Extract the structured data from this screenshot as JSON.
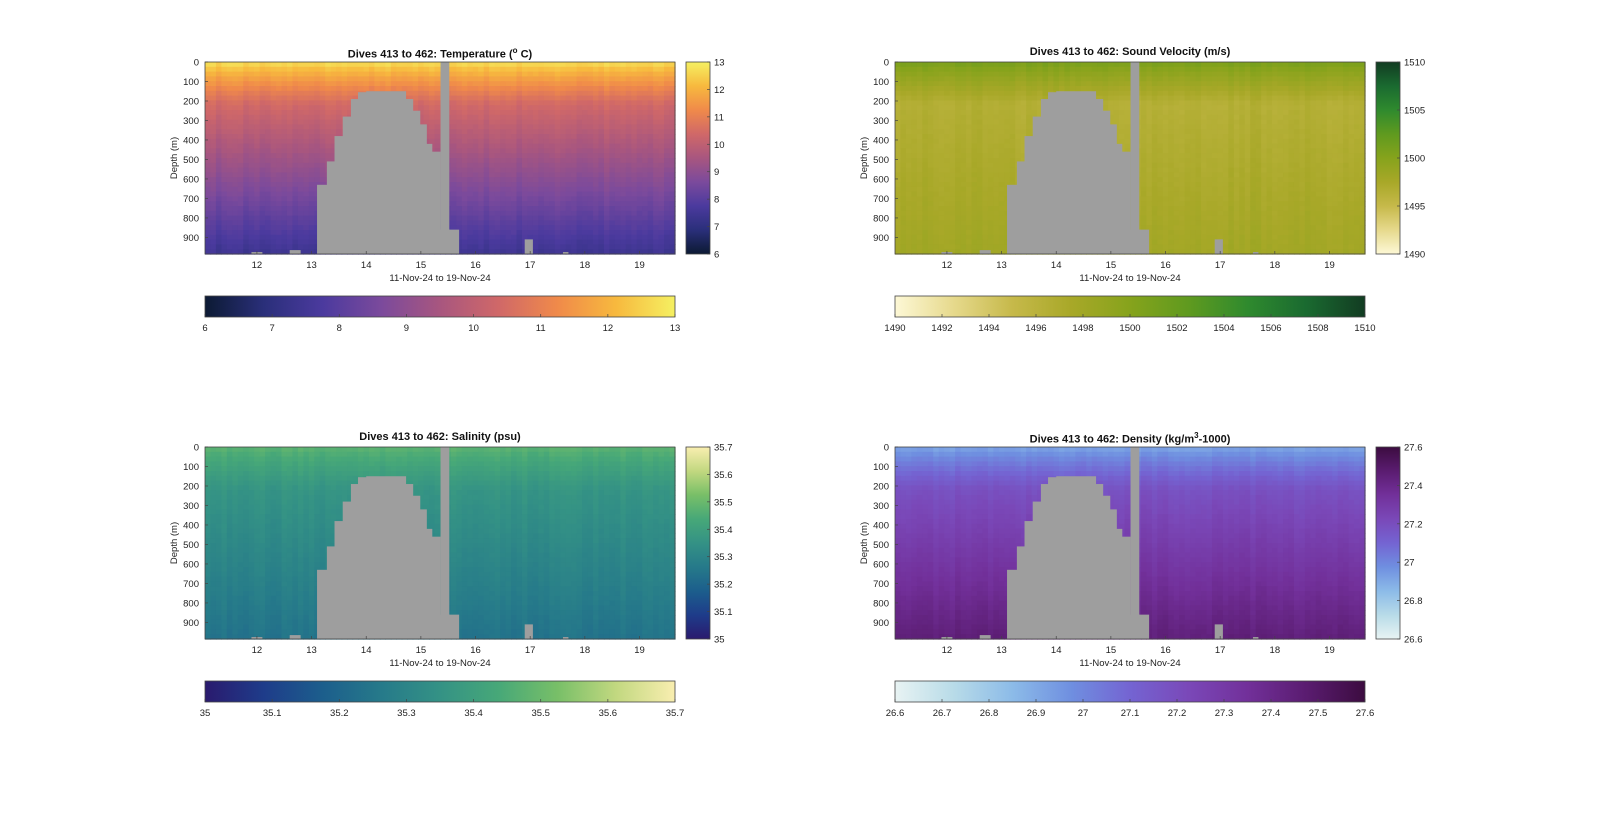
{
  "figure": {
    "panels": [
      {
        "id": "temperature",
        "title_prefix": "Dives 413 to 462: Temperature (",
        "title_sup": "o",
        "title_suffix": " C)",
        "colormap": [
          "#0c1a33",
          "#2a2f7a",
          "#4b3a9e",
          "#7b4a9c",
          "#a8567f",
          "#d06868",
          "#f08a4a",
          "#f7b93e",
          "#f5f062"
        ],
        "depth_colors": {
          "surface": 0.97,
          "mid": 0.62,
          "deep": 0.2
        }
      },
      {
        "id": "sound_velocity",
        "title_prefix": "Dives 413 to 462: Sound Velocity (m/s)",
        "title_sup": "",
        "title_suffix": "",
        "colormap": [
          "#fdf8d6",
          "#e6d98c",
          "#c6b94a",
          "#a8a828",
          "#86a31c",
          "#5f9a1f",
          "#2f8a2e",
          "#1a6a30",
          "#123c22"
        ],
        "depth_colors": {
          "surface": 0.55,
          "mid": 0.32,
          "deep": 0.4
        }
      },
      {
        "id": "salinity",
        "title_prefix": "Dives 413 to 462: Salinity (psu)",
        "title_sup": "",
        "title_suffix": "",
        "colormap": [
          "#2a1a6e",
          "#1e3c8a",
          "#1c5e8c",
          "#267a8a",
          "#349285",
          "#47a878",
          "#78bf68",
          "#c2d880",
          "#f9eeb0"
        ],
        "depth_colors": {
          "surface": 0.7,
          "mid": 0.55,
          "deep": 0.38
        }
      },
      {
        "id": "density",
        "title_prefix": "Dives 413 to 462: Density (kg/m",
        "title_sup": "3",
        "title_suffix": "-1000)",
        "colormap": [
          "#e8f3f3",
          "#b8dbe8",
          "#8cbbe8",
          "#6f8fe0",
          "#7464d2",
          "#7a48b8",
          "#72309a",
          "#5a1c70",
          "#3c0c40"
        ],
        "depth_colors": {
          "surface": 0.3,
          "mid": 0.58,
          "deep": 0.85
        }
      }
    ]
  },
  "chart_data": [
    {
      "type": "heatmap",
      "title": "Dives 413 to 462: Temperature (o C)",
      "xlabel": "11-Nov-24 to 19-Nov-24",
      "ylabel": "Depth (m)",
      "x_ticks": [
        "12",
        "13",
        "14",
        "15",
        "16",
        "17",
        "18",
        "19"
      ],
      "y_ticks": [
        "0",
        "100",
        "200",
        "300",
        "400",
        "500",
        "600",
        "700",
        "800",
        "900"
      ],
      "xlim": [
        11.05,
        19.65
      ],
      "ylim": [
        0,
        985
      ],
      "colorbar_ticks": [
        "6",
        "7",
        "8",
        "9",
        "10",
        "11",
        "12",
        "13"
      ],
      "colorbar_h_ticks": [
        "6",
        "7",
        "8",
        "9",
        "10",
        "11",
        "12",
        "13"
      ],
      "crange": [
        6,
        13
      ],
      "profile": {
        "surface_value": 12.8,
        "mid_value": 10.4,
        "deep_value": 7.4
      },
      "no_data_region": {
        "x": [
          13.1,
          15.55
        ],
        "bottom_depth": 985,
        "shoal_depth": 150
      }
    },
    {
      "type": "heatmap",
      "title": "Dives 413 to 462: Sound Velocity (m/s)",
      "xlabel": "11-Nov-24 to 19-Nov-24",
      "ylabel": "Depth (m)",
      "x_ticks": [
        "12",
        "13",
        "14",
        "15",
        "16",
        "17",
        "18",
        "19"
      ],
      "y_ticks": [
        "0",
        "100",
        "200",
        "300",
        "400",
        "500",
        "600",
        "700",
        "800",
        "900"
      ],
      "xlim": [
        11.05,
        19.65
      ],
      "ylim": [
        0,
        985
      ],
      "colorbar_ticks": [
        "1490",
        "1495",
        "1500",
        "1505",
        "1510"
      ],
      "colorbar_h_ticks": [
        "1490",
        "1492",
        "1494",
        "1496",
        "1498",
        "1500",
        "1502",
        "1504",
        "1506",
        "1508",
        "1510"
      ],
      "crange": [
        1490,
        1510
      ],
      "profile": {
        "surface_value": 1501,
        "mid_value": 1496.5,
        "deep_value": 1498
      },
      "no_data_region": {
        "x": [
          13.1,
          15.55
        ],
        "bottom_depth": 985,
        "shoal_depth": 150
      }
    },
    {
      "type": "heatmap",
      "title": "Dives 413 to 462: Salinity (psu)",
      "xlabel": "11-Nov-24 to 19-Nov-24",
      "ylabel": "Depth (m)",
      "x_ticks": [
        "12",
        "13",
        "14",
        "15",
        "16",
        "17",
        "18",
        "19"
      ],
      "y_ticks": [
        "0",
        "100",
        "200",
        "300",
        "400",
        "500",
        "600",
        "700",
        "800",
        "900"
      ],
      "xlim": [
        11.05,
        19.65
      ],
      "ylim": [
        0,
        985
      ],
      "colorbar_ticks": [
        "35",
        "35.1",
        "35.2",
        "35.3",
        "35.4",
        "35.5",
        "35.6",
        "35.7"
      ],
      "colorbar_h_ticks": [
        "35",
        "35.1",
        "35.2",
        "35.3",
        "35.4",
        "35.5",
        "35.6",
        "35.7"
      ],
      "crange": [
        35,
        35.7
      ],
      "profile": {
        "surface_value": 35.48,
        "mid_value": 35.36,
        "deep_value": 35.24
      },
      "no_data_region": {
        "x": [
          13.1,
          15.55
        ],
        "bottom_depth": 985,
        "shoal_depth": 150
      }
    },
    {
      "type": "heatmap",
      "title": "Dives 413 to 462: Density (kg/m3-1000)",
      "xlabel": "11-Nov-24 to 19-Nov-24",
      "ylabel": "Depth (m)",
      "x_ticks": [
        "12",
        "13",
        "14",
        "15",
        "16",
        "17",
        "18",
        "19"
      ],
      "y_ticks": [
        "0",
        "100",
        "200",
        "300",
        "400",
        "500",
        "600",
        "700",
        "800",
        "900"
      ],
      "xlim": [
        11.05,
        19.65
      ],
      "ylim": [
        0,
        985
      ],
      "colorbar_ticks": [
        "26.6",
        "26.8",
        "27",
        "27.2",
        "27.4",
        "27.6"
      ],
      "colorbar_h_ticks": [
        "26.6",
        "26.7",
        "26.8",
        "26.9",
        "27",
        "27.1",
        "27.2",
        "27.3",
        "27.4",
        "27.5",
        "27.6"
      ],
      "crange": [
        26.6,
        27.6
      ],
      "profile": {
        "surface_value": 26.9,
        "mid_value": 27.18,
        "deep_value": 27.45
      },
      "no_data_region": {
        "x": [
          13.1,
          15.55
        ],
        "bottom_depth": 985,
        "shoal_depth": 150
      }
    }
  ]
}
